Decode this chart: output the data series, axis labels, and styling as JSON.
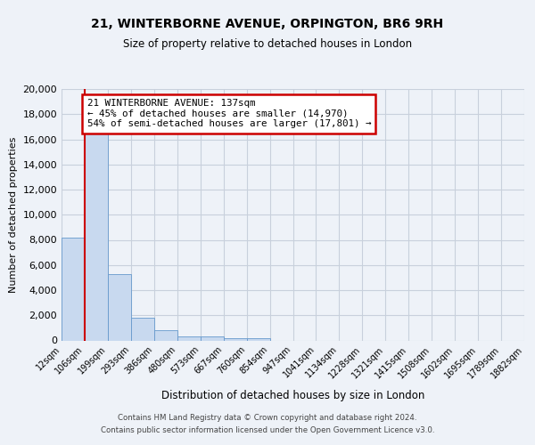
{
  "title": "21, WINTERBORNE AVENUE, ORPINGTON, BR6 9RH",
  "subtitle": "Size of property relative to detached houses in London",
  "xlabel": "Distribution of detached houses by size in London",
  "ylabel": "Number of detached properties",
  "bin_labels": [
    "12sqm",
    "106sqm",
    "199sqm",
    "293sqm",
    "386sqm",
    "480sqm",
    "573sqm",
    "667sqm",
    "760sqm",
    "854sqm",
    "947sqm",
    "1041sqm",
    "1134sqm",
    "1228sqm",
    "1321sqm",
    "1415sqm",
    "1508sqm",
    "1602sqm",
    "1695sqm",
    "1789sqm",
    "1882sqm"
  ],
  "bar_values": [
    8200,
    16500,
    5300,
    1800,
    800,
    350,
    300,
    150,
    150,
    0,
    0,
    0,
    0,
    0,
    0,
    0,
    0,
    0,
    0,
    0
  ],
  "bar_color": "#c8d9ef",
  "bar_edge_color": "#6699cc",
  "property_line_color": "#cc0000",
  "property_bin_idx": 1,
  "annotation_text1": "21 WINTERBORNE AVENUE: 137sqm",
  "annotation_text2": "← 45% of detached houses are smaller (14,970)",
  "annotation_text3": "54% of semi-detached houses are larger (17,801) →",
  "annotation_box_color": "#ffffff",
  "annotation_border_color": "#cc0000",
  "ylim": [
    0,
    20000
  ],
  "yticks": [
    0,
    2000,
    4000,
    6000,
    8000,
    10000,
    12000,
    14000,
    16000,
    18000,
    20000
  ],
  "footer_line1": "Contains HM Land Registry data © Crown copyright and database right 2024.",
  "footer_line2": "Contains public sector information licensed under the Open Government Licence v3.0.",
  "background_color": "#eef2f8",
  "grid_color": "#c8d0dc",
  "plot_bg_color": "#eef2f8"
}
